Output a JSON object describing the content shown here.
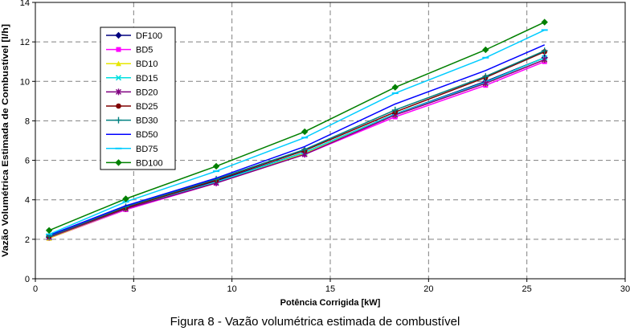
{
  "caption": "Figura 8 - Vazão volumétrica estimada de combustível",
  "chart_data": {
    "type": "line",
    "title": "",
    "xlabel": "Potência Corrigida [kW]",
    "ylabel": "Vazão Volumétrica Estimada de Combustível [l/h]",
    "xlim": [
      0,
      30
    ],
    "ylim": [
      0,
      14
    ],
    "xticks": [
      0,
      5,
      10,
      15,
      20,
      25,
      30
    ],
    "yticks": [
      0,
      2,
      4,
      6,
      8,
      10,
      12,
      14
    ],
    "grid": true,
    "legend_position": "top-left",
    "x": [
      0.7,
      4.6,
      9.2,
      13.7,
      18.3,
      22.9,
      25.9
    ],
    "series": [
      {
        "name": "DF100",
        "color": "#000080",
        "marker": "diamond",
        "values": [
          2.1,
          3.6,
          4.95,
          6.4,
          8.35,
          10.0,
          11.2
        ]
      },
      {
        "name": "BD5",
        "color": "#ff00ff",
        "marker": "square",
        "values": [
          2.05,
          3.5,
          4.85,
          6.3,
          8.2,
          9.8,
          11.0
        ]
      },
      {
        "name": "BD10",
        "color": "#e6e600",
        "marker": "triangle",
        "values": [
          2.05,
          3.55,
          4.9,
          6.35,
          8.3,
          9.9,
          11.1
        ]
      },
      {
        "name": "BD15",
        "color": "#00e0e0",
        "marker": "x",
        "values": [
          2.1,
          3.55,
          4.9,
          6.4,
          8.35,
          9.95,
          11.2
        ]
      },
      {
        "name": "BD20",
        "color": "#800080",
        "marker": "asterisk",
        "values": [
          2.1,
          3.55,
          4.85,
          6.3,
          8.3,
          9.9,
          11.1
        ]
      },
      {
        "name": "BD25",
        "color": "#800000",
        "marker": "circle",
        "values": [
          2.15,
          3.6,
          5.0,
          6.5,
          8.45,
          10.2,
          11.5
        ]
      },
      {
        "name": "BD30",
        "color": "#008080",
        "marker": "plus",
        "values": [
          2.15,
          3.65,
          5.05,
          6.55,
          8.55,
          10.25,
          11.55
        ]
      },
      {
        "name": "BD50",
        "color": "#0000ff",
        "marker": "none",
        "values": [
          2.2,
          3.7,
          5.1,
          6.7,
          8.85,
          10.55,
          11.85
        ]
      },
      {
        "name": "BD75",
        "color": "#00ccff",
        "marker": "dash",
        "values": [
          2.25,
          3.9,
          5.45,
          7.15,
          9.4,
          11.2,
          12.6
        ]
      },
      {
        "name": "BD100",
        "color": "#008000",
        "marker": "diamond",
        "values": [
          2.45,
          4.05,
          5.7,
          7.45,
          9.7,
          11.6,
          13.0
        ]
      }
    ]
  }
}
